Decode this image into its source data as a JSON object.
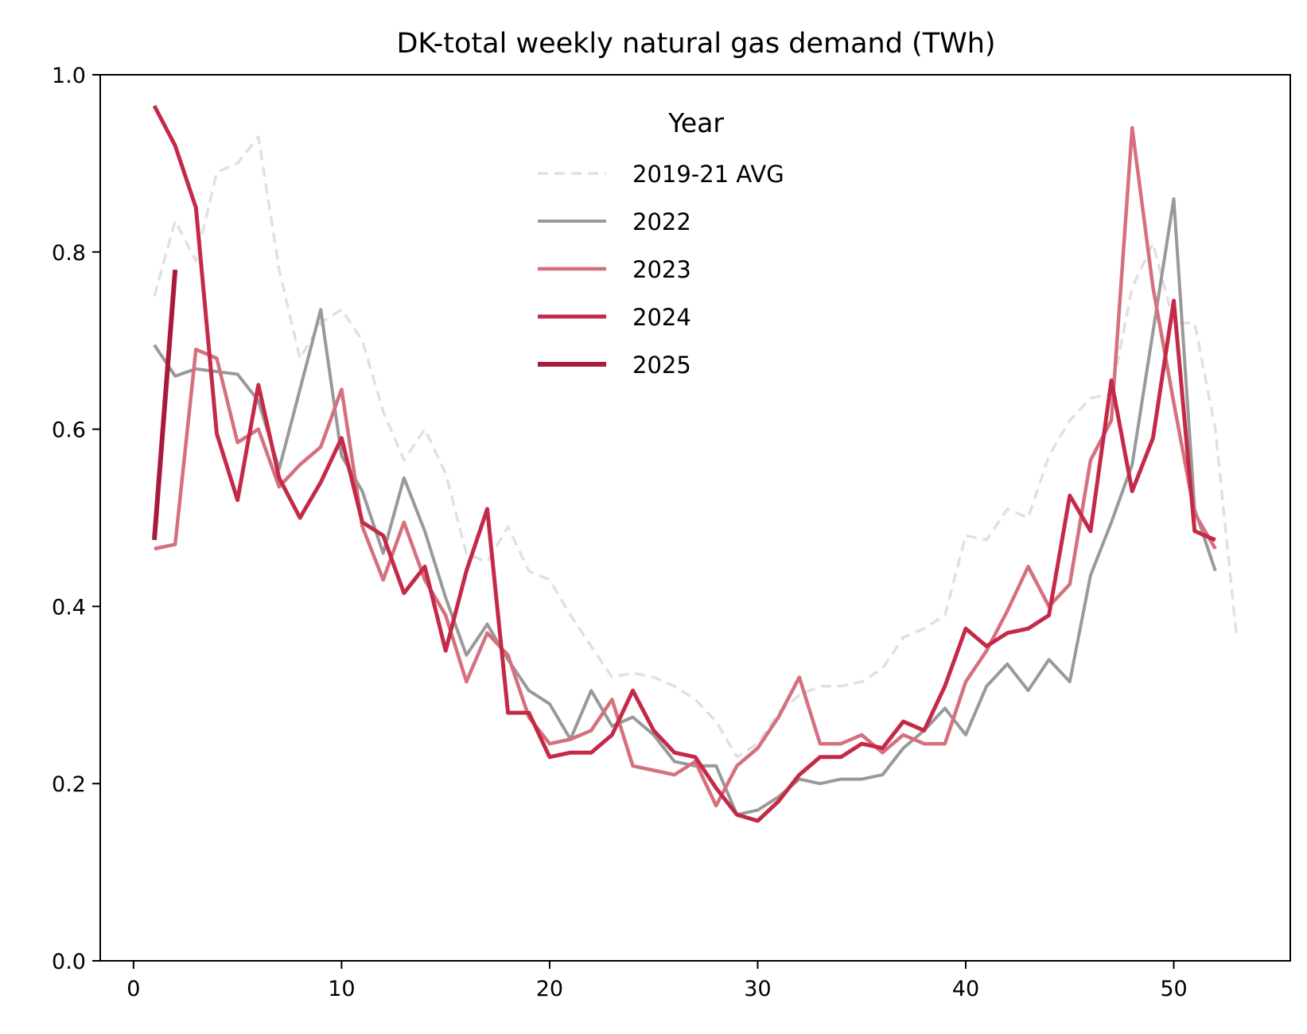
{
  "chart_data": {
    "type": "line",
    "title": "DK-total weekly natural gas demand (TWh)",
    "xlabel": "",
    "ylabel": "",
    "xlim": [
      -1.6,
      55.6
    ],
    "ylim": [
      0,
      1.0
    ],
    "xticks": [
      0,
      10,
      20,
      30,
      40,
      50
    ],
    "yticks": [
      0.0,
      0.2,
      0.4,
      0.6,
      0.8,
      1.0
    ],
    "xtick_labels": [
      "0",
      "10",
      "20",
      "30",
      "40",
      "50"
    ],
    "ytick_labels": [
      "0.0",
      "0.2",
      "0.4",
      "0.6",
      "0.8",
      "1.0"
    ],
    "grid": false,
    "legend": {
      "title": "Year",
      "placement": "upper center"
    },
    "series": [
      {
        "name": "2019-21 AVG",
        "color": "#e0e0e0",
        "style": "dashed",
        "x": [
          1,
          2,
          3,
          4,
          5,
          6,
          7,
          8,
          9,
          10,
          11,
          12,
          13,
          14,
          15,
          16,
          17,
          18,
          19,
          20,
          21,
          22,
          23,
          24,
          25,
          26,
          27,
          28,
          29,
          30,
          31,
          32,
          33,
          34,
          35,
          36,
          37,
          38,
          39,
          40,
          41,
          42,
          43,
          44,
          45,
          46,
          47,
          48,
          49,
          50,
          51,
          52,
          53
        ],
        "values": [
          0.75,
          0.835,
          0.79,
          0.89,
          0.9,
          0.93,
          0.78,
          0.68,
          0.72,
          0.735,
          0.7,
          0.62,
          0.565,
          0.6,
          0.55,
          0.46,
          0.45,
          0.49,
          0.44,
          0.43,
          0.39,
          0.355,
          0.32,
          0.325,
          0.32,
          0.31,
          0.295,
          0.27,
          0.23,
          0.245,
          0.28,
          0.3,
          0.31,
          0.31,
          0.315,
          0.33,
          0.365,
          0.375,
          0.39,
          0.48,
          0.475,
          0.51,
          0.5,
          0.57,
          0.61,
          0.635,
          0.64,
          0.76,
          0.81,
          0.72,
          0.72,
          0.6,
          0.37
        ]
      },
      {
        "name": "2022",
        "color": "#999999",
        "style": "solid",
        "x": [
          1,
          2,
          3,
          4,
          5,
          6,
          7,
          8,
          9,
          10,
          11,
          12,
          13,
          14,
          15,
          16,
          17,
          18,
          19,
          20,
          21,
          22,
          23,
          24,
          25,
          26,
          27,
          28,
          29,
          30,
          31,
          32,
          33,
          34,
          35,
          36,
          37,
          38,
          39,
          40,
          41,
          42,
          43,
          44,
          45,
          46,
          47,
          48,
          49,
          50,
          51,
          52
        ],
        "values": [
          0.695,
          0.66,
          0.668,
          0.665,
          0.662,
          0.632,
          0.555,
          0.645,
          0.735,
          0.57,
          0.53,
          0.46,
          0.545,
          0.485,
          0.41,
          0.345,
          0.38,
          0.34,
          0.305,
          0.29,
          0.25,
          0.305,
          0.265,
          0.275,
          0.255,
          0.225,
          0.22,
          0.22,
          0.165,
          0.17,
          0.185,
          0.205,
          0.2,
          0.205,
          0.205,
          0.21,
          0.24,
          0.26,
          0.285,
          0.255,
          0.31,
          0.335,
          0.305,
          0.34,
          0.315,
          0.435,
          0.495,
          0.56,
          0.71,
          0.86,
          0.51,
          0.44
        ]
      },
      {
        "name": "2023",
        "color": "#d5707e",
        "style": "solid",
        "x": [
          1,
          2,
          3,
          4,
          5,
          6,
          7,
          8,
          9,
          10,
          11,
          12,
          13,
          14,
          15,
          16,
          17,
          18,
          19,
          20,
          21,
          22,
          23,
          24,
          25,
          26,
          27,
          28,
          29,
          30,
          31,
          32,
          33,
          34,
          35,
          36,
          37,
          38,
          39,
          40,
          41,
          42,
          43,
          44,
          45,
          46,
          47,
          48,
          49,
          50,
          51,
          52
        ],
        "values": [
          0.465,
          0.47,
          0.69,
          0.68,
          0.585,
          0.6,
          0.535,
          0.56,
          0.58,
          0.645,
          0.49,
          0.43,
          0.495,
          0.43,
          0.39,
          0.315,
          0.37,
          0.345,
          0.275,
          0.245,
          0.25,
          0.26,
          0.295,
          0.22,
          0.215,
          0.21,
          0.225,
          0.175,
          0.22,
          0.24,
          0.275,
          0.32,
          0.245,
          0.245,
          0.255,
          0.235,
          0.255,
          0.245,
          0.245,
          0.315,
          0.35,
          0.395,
          0.445,
          0.4,
          0.425,
          0.565,
          0.61,
          0.94,
          0.76,
          0.63,
          0.505,
          0.465
        ]
      },
      {
        "name": "2024",
        "color": "#c42a47",
        "style": "solid",
        "x": [
          1,
          2,
          3,
          4,
          5,
          6,
          7,
          8,
          9,
          10,
          11,
          12,
          13,
          14,
          15,
          16,
          17,
          18,
          19,
          20,
          21,
          22,
          23,
          24,
          25,
          26,
          27,
          28,
          29,
          30,
          31,
          32,
          33,
          34,
          35,
          36,
          37,
          38,
          39,
          40,
          41,
          42,
          43,
          44,
          45,
          46,
          47,
          48,
          49,
          50,
          51,
          52
        ],
        "values": [
          0.965,
          0.92,
          0.85,
          0.595,
          0.52,
          0.65,
          0.545,
          0.5,
          0.54,
          0.59,
          0.495,
          0.48,
          0.415,
          0.445,
          0.35,
          0.44,
          0.51,
          0.28,
          0.28,
          0.23,
          0.235,
          0.235,
          0.255,
          0.305,
          0.26,
          0.235,
          0.23,
          0.195,
          0.165,
          0.158,
          0.18,
          0.21,
          0.23,
          0.23,
          0.245,
          0.24,
          0.27,
          0.26,
          0.31,
          0.375,
          0.355,
          0.37,
          0.375,
          0.39,
          0.525,
          0.485,
          0.655,
          0.53,
          0.59,
          0.745,
          0.485,
          0.475
        ]
      },
      {
        "name": "2025",
        "color": "#a8193e",
        "style": "solid",
        "x": [
          1,
          2
        ],
        "values": [
          0.475,
          0.78
        ]
      }
    ]
  }
}
